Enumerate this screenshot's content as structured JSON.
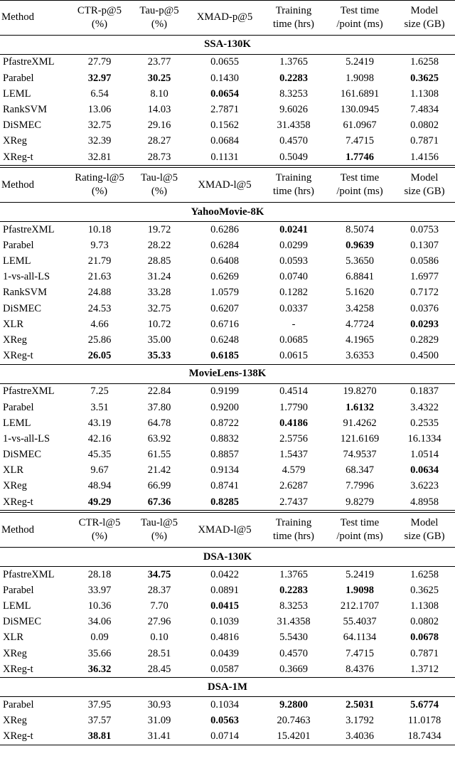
{
  "document": {
    "background": "#ffffff",
    "text_color": "#000000",
    "rule_color": "#000000"
  },
  "table": {
    "groups": [
      {
        "header": {
          "cells": [
            {
              "lines": [
                "Method"
              ]
            },
            {
              "lines": [
                "CTR-p@5",
                "(%)"
              ]
            },
            {
              "lines": [
                "Tau-p@5",
                "(%)"
              ]
            },
            {
              "lines": [
                "XMAD-p@5"
              ]
            },
            {
              "lines": [
                "Training",
                "time (hrs)"
              ]
            },
            {
              "lines": [
                "Test time",
                "/point (ms)"
              ]
            },
            {
              "lines": [
                "Model",
                "size (GB)"
              ]
            }
          ]
        },
        "sections": [
          {
            "title": "SSA-130K",
            "rows": [
              {
                "method": "PfastreXML",
                "values": [
                  "27.79",
                  "23.77",
                  "0.0655",
                  "1.3765",
                  "5.2419",
                  "1.6258"
                ],
                "bold": []
              },
              {
                "method": "Parabel",
                "values": [
                  "32.97",
                  "30.25",
                  "0.1430",
                  "0.2283",
                  "1.9098",
                  "0.3625"
                ],
                "bold": [
                  0,
                  1,
                  3,
                  5
                ]
              },
              {
                "method": "LEML",
                "values": [
                  "6.54",
                  "8.10",
                  "0.0654",
                  "8.3253",
                  "161.6891",
                  "1.1308"
                ],
                "bold": [
                  2
                ]
              },
              {
                "method": "RankSVM",
                "values": [
                  "13.06",
                  "14.03",
                  "2.7871",
                  "9.6026",
                  "130.0945",
                  "7.4834"
                ],
                "bold": []
              },
              {
                "method": "DiSMEC",
                "values": [
                  "32.75",
                  "29.16",
                  "0.1562",
                  "31.4358",
                  "61.0967",
                  "0.0802"
                ],
                "bold": []
              },
              {
                "method": "XReg",
                "values": [
                  "32.39",
                  "28.27",
                  "0.0684",
                  "0.4570",
                  "7.4715",
                  "0.7871"
                ],
                "bold": []
              },
              {
                "method": "XReg-t",
                "values": [
                  "32.81",
                  "28.73",
                  "0.1131",
                  "0.5049",
                  "1.7746",
                  "1.4156"
                ],
                "bold": [
                  4
                ]
              }
            ]
          }
        ]
      },
      {
        "header": {
          "cells": [
            {
              "lines": [
                "Method"
              ]
            },
            {
              "lines": [
                "Rating-l@5",
                "(%)"
              ]
            },
            {
              "lines": [
                "Tau-l@5",
                "(%)"
              ]
            },
            {
              "lines": [
                "XMAD-l@5"
              ]
            },
            {
              "lines": [
                "Training",
                "time (hrs)"
              ]
            },
            {
              "lines": [
                "Test time",
                "/point (ms)"
              ]
            },
            {
              "lines": [
                "Model",
                "size (GB)"
              ]
            }
          ]
        },
        "sections": [
          {
            "title": "YahooMovie-8K",
            "rows": [
              {
                "method": "PfastreXML",
                "values": [
                  "10.18",
                  "19.72",
                  "0.6286",
                  "0.0241",
                  "8.5074",
                  "0.0753"
                ],
                "bold": [
                  3
                ]
              },
              {
                "method": "Parabel",
                "values": [
                  "9.73",
                  "28.22",
                  "0.6284",
                  "0.0299",
                  "0.9639",
                  "0.1307"
                ],
                "bold": [
                  4
                ]
              },
              {
                "method": "LEML",
                "values": [
                  "21.79",
                  "28.85",
                  "0.6408",
                  "0.0593",
                  "5.3650",
                  "0.0586"
                ],
                "bold": []
              },
              {
                "method": "1-vs-all-LS",
                "values": [
                  "21.63",
                  "31.24",
                  "0.6269",
                  "0.0740",
                  "6.8841",
                  "1.6977"
                ],
                "bold": []
              },
              {
                "method": "RankSVM",
                "values": [
                  "24.88",
                  "33.28",
                  "1.0579",
                  "0.1282",
                  "5.1620",
                  "0.7172"
                ],
                "bold": []
              },
              {
                "method": "DiSMEC",
                "values": [
                  "24.53",
                  "32.75",
                  "0.6207",
                  "0.0337",
                  "3.4258",
                  "0.0376"
                ],
                "bold": []
              },
              {
                "method": "XLR",
                "values": [
                  "4.66",
                  "10.72",
                  "0.6716",
                  "-",
                  "4.7724",
                  "0.0293"
                ],
                "bold": [
                  5
                ]
              },
              {
                "method": "XReg",
                "values": [
                  "25.86",
                  "35.00",
                  "0.6248",
                  "0.0685",
                  "4.1965",
                  "0.2829"
                ],
                "bold": []
              },
              {
                "method": "XReg-t",
                "values": [
                  "26.05",
                  "35.33",
                  "0.6185",
                  "0.0615",
                  "3.6353",
                  "0.4500"
                ],
                "bold": [
                  0,
                  1,
                  2
                ]
              }
            ]
          },
          {
            "title": "MovieLens-138K",
            "rows": [
              {
                "method": "PfastreXML",
                "values": [
                  "7.25",
                  "22.84",
                  "0.9199",
                  "0.4514",
                  "19.8270",
                  "0.1837"
                ],
                "bold": []
              },
              {
                "method": "Parabel",
                "values": [
                  "3.51",
                  "37.80",
                  "0.9200",
                  "1.7790",
                  "1.6132",
                  "3.4322"
                ],
                "bold": [
                  4
                ]
              },
              {
                "method": "LEML",
                "values": [
                  "43.19",
                  "64.78",
                  "0.8722",
                  "0.4186",
                  "91.4262",
                  "0.2535"
                ],
                "bold": [
                  3
                ]
              },
              {
                "method": "1-vs-all-LS",
                "values": [
                  "42.16",
                  "63.92",
                  "0.8832",
                  "2.5756",
                  "121.6169",
                  "16.1334"
                ],
                "bold": []
              },
              {
                "method": "DiSMEC",
                "values": [
                  "45.35",
                  "61.55",
                  "0.8857",
                  "1.5437",
                  "74.9537",
                  "1.0514"
                ],
                "bold": []
              },
              {
                "method": "XLR",
                "values": [
                  "9.67",
                  "21.42",
                  "0.9134",
                  "4.579",
                  "68.347",
                  "0.0634"
                ],
                "bold": [
                  5
                ]
              },
              {
                "method": "XReg",
                "values": [
                  "48.94",
                  "66.99",
                  "0.8741",
                  "2.6287",
                  "7.7996",
                  "3.6223"
                ],
                "bold": []
              },
              {
                "method": "XReg-t",
                "values": [
                  "49.29",
                  "67.36",
                  "0.8285",
                  "2.7437",
                  "9.8279",
                  "4.8958"
                ],
                "bold": [
                  0,
                  1,
                  2
                ]
              }
            ]
          }
        ]
      },
      {
        "header": {
          "cells": [
            {
              "lines": [
                "Method"
              ]
            },
            {
              "lines": [
                "CTR-l@5",
                "(%)"
              ]
            },
            {
              "lines": [
                "Tau-l@5",
                "(%)"
              ]
            },
            {
              "lines": [
                "XMAD-l@5"
              ]
            },
            {
              "lines": [
                "Training",
                "time (hrs)"
              ]
            },
            {
              "lines": [
                "Test time",
                "/point (ms)"
              ]
            },
            {
              "lines": [
                "Model",
                "size (GB)"
              ]
            }
          ]
        },
        "sections": [
          {
            "title": "DSA-130K",
            "rows": [
              {
                "method": "PfastreXML",
                "values": [
                  "28.18",
                  "34.75",
                  "0.0422",
                  "1.3765",
                  "5.2419",
                  "1.6258"
                ],
                "bold": [
                  1
                ]
              },
              {
                "method": "Parabel",
                "values": [
                  "33.97",
                  "28.37",
                  "0.0891",
                  "0.2283",
                  "1.9098",
                  "0.3625"
                ],
                "bold": [
                  3,
                  4
                ]
              },
              {
                "method": "LEML",
                "values": [
                  "10.36",
                  "7.70",
                  "0.0415",
                  "8.3253",
                  "212.1707",
                  "1.1308"
                ],
                "bold": [
                  2
                ]
              },
              {
                "method": "DiSMEC",
                "values": [
                  "34.06",
                  "27.96",
                  "0.1039",
                  "31.4358",
                  "55.4037",
                  "0.0802"
                ],
                "bold": []
              },
              {
                "method": "XLR",
                "values": [
                  "0.09",
                  "0.10",
                  "0.4816",
                  "5.5430",
                  "64.1134",
                  "0.0678"
                ],
                "bold": [
                  5
                ]
              },
              {
                "method": "XReg",
                "values": [
                  "35.66",
                  "28.51",
                  "0.0439",
                  "0.4570",
                  "7.4715",
                  "0.7871"
                ],
                "bold": []
              },
              {
                "method": "XReg-t",
                "values": [
                  "36.32",
                  "28.45",
                  "0.0587",
                  "0.3669",
                  "8.4376",
                  "1.3712"
                ],
                "bold": [
                  0
                ]
              }
            ]
          },
          {
            "title": "DSA-1M",
            "rows": [
              {
                "method": "Parabel",
                "values": [
                  "37.95",
                  "30.93",
                  "0.1034",
                  "9.2800",
                  "2.5031",
                  "5.6774"
                ],
                "bold": [
                  3,
                  4,
                  5
                ]
              },
              {
                "method": "XReg",
                "values": [
                  "37.57",
                  "31.09",
                  "0.0563",
                  "20.7463",
                  "3.1792",
                  "11.0178"
                ],
                "bold": [
                  2
                ]
              },
              {
                "method": "XReg-t",
                "values": [
                  "38.81",
                  "31.41",
                  "0.0714",
                  "15.4201",
                  "3.4036",
                  "18.7434"
                ],
                "bold": [
                  0
                ]
              }
            ]
          }
        ]
      }
    ]
  }
}
